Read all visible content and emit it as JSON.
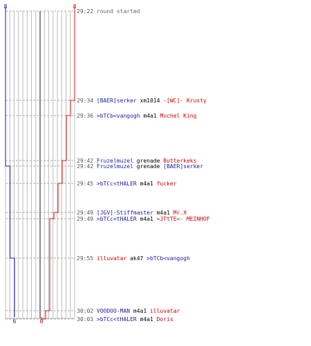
{
  "colors": {
    "blue": "#1a1aa6",
    "red": "#cc0000",
    "grey": "#666666",
    "black": "#000000",
    "grid": "#bbbbbb",
    "gridCenter": "#555555",
    "blueLine": "#1010c0",
    "redLine": "#e01010"
  },
  "chart_data": {
    "type": "line",
    "title": "",
    "grid": true,
    "yscale": "events",
    "x_range": [
      0,
      8
    ],
    "series": [
      {
        "color": "blue",
        "start_count": 8,
        "end_count": 6,
        "steps": [
          {
            "event": 4,
            "count": 7
          },
          {
            "event": 8,
            "count": 6
          }
        ]
      },
      {
        "color": "red",
        "start_count": 8,
        "end_count": 0,
        "steps": [
          {
            "event": 1,
            "count": 7
          },
          {
            "event": 2,
            "count": 6
          },
          {
            "event": 3,
            "count": 5
          },
          {
            "event": 5,
            "count": 4
          },
          {
            "event": 6,
            "count": 3
          },
          {
            "event": 7,
            "count": 2
          },
          {
            "event": 9,
            "count": 1
          },
          {
            "event": 10,
            "count": 0
          }
        ]
      }
    ],
    "labels": {
      "blue_start": "8",
      "red_start": "8",
      "blue_end": "6",
      "red_end": "0"
    },
    "events": [
      {
        "time": "29:22",
        "parts": [
          {
            "t": "round started",
            "c": "grey"
          }
        ]
      },
      {
        "time": "29:34",
        "parts": [
          {
            "t": "[BAER]serker",
            "c": "blue"
          },
          {
            "t": " xm1014 ",
            "c": "black"
          },
          {
            "t": "-[WC]- Krusty",
            "c": "red"
          }
        ]
      },
      {
        "time": "29:36",
        "parts": [
          {
            "t": ">bTCb<vangogh",
            "c": "blue"
          },
          {
            "t": " m4a1 ",
            "c": "black"
          },
          {
            "t": "Muchel King",
            "c": "red"
          }
        ]
      },
      {
        "time": "29:42",
        "parts": [
          {
            "t": "Fruzelmuzel",
            "c": "blue"
          },
          {
            "t": " grenade ",
            "c": "black"
          },
          {
            "t": "Butterkeks",
            "c": "red"
          }
        ]
      },
      {
        "time": "29:42",
        "parts": [
          {
            "t": "Fruzelmuzel",
            "c": "blue"
          },
          {
            "t": " grenade ",
            "c": "black"
          },
          {
            "t": "[BAER]serker",
            "c": "blue"
          }
        ]
      },
      {
        "time": "29:45",
        "parts": [
          {
            "t": ">bTCc<tHALER",
            "c": "blue"
          },
          {
            "t": " m4a1 ",
            "c": "black"
          },
          {
            "t": "fucker",
            "c": "red"
          }
        ]
      },
      {
        "time": "29:49",
        "parts": [
          {
            "t": "[JGV]-Stiffmaster",
            "c": "blue"
          },
          {
            "t": " m4a1 ",
            "c": "black"
          },
          {
            "t": "Mr.X",
            "c": "red"
          }
        ]
      },
      {
        "time": "29:49",
        "parts": [
          {
            "t": ">bTCc<tHALER",
            "c": "blue"
          },
          {
            "t": " m4a1 ",
            "c": "black"
          },
          {
            "t": "=JTtTE=- MEINHOF",
            "c": "red"
          }
        ]
      },
      {
        "time": "29:55",
        "parts": [
          {
            "t": "illuvatar",
            "c": "red"
          },
          {
            "t": " ak47 ",
            "c": "black"
          },
          {
            "t": ">bTCb<vangogh",
            "c": "blue"
          }
        ]
      },
      {
        "time": "30:02",
        "parts": [
          {
            "t": "VOODOO-MAN",
            "c": "blue"
          },
          {
            "t": " m4a1 ",
            "c": "black"
          },
          {
            "t": "illuvatar",
            "c": "red"
          }
        ]
      },
      {
        "time": "30:03",
        "parts": [
          {
            "t": ">bTCc<tHALER",
            "c": "blue"
          },
          {
            "t": " m4a1 ",
            "c": "black"
          },
          {
            "t": "Doris",
            "c": "red"
          }
        ]
      }
    ]
  }
}
